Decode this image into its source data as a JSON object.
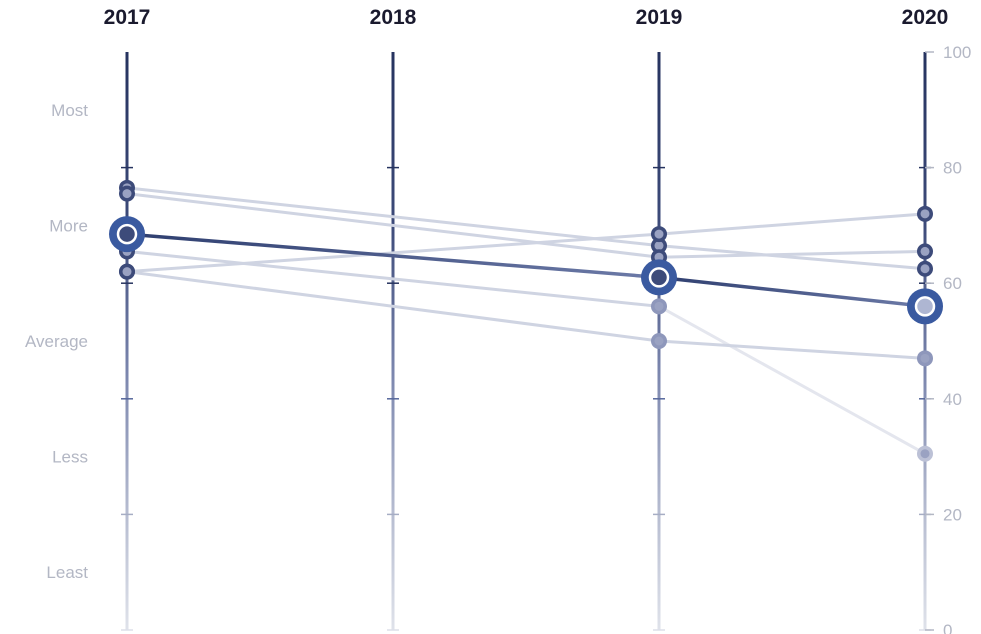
{
  "chart_data": {
    "type": "line",
    "x": [
      "2017",
      "2018",
      "2019",
      "2020"
    ],
    "ylim": [
      0,
      100
    ],
    "yticks": [
      "0",
      "20",
      "40",
      "60",
      "80",
      "100"
    ],
    "bands": [
      "Most",
      "More",
      "Average",
      "Less",
      "Least"
    ],
    "series": [
      {
        "values": [
          76.5,
          null,
          66.5,
          62.5
        ],
        "highlight": false
      },
      {
        "values": [
          75.5,
          null,
          64.5,
          65.5
        ],
        "highlight": false
      },
      {
        "values": [
          68.5,
          null,
          61,
          56
        ],
        "highlight": true
      },
      {
        "values": [
          65.5,
          null,
          56,
          30.5
        ],
        "highlight": false
      },
      {
        "values": [
          62,
          null,
          68.5,
          72
        ],
        "highlight": false
      },
      {
        "values": [
          62,
          null,
          50,
          47
        ],
        "highlight": false
      }
    ],
    "colors": {
      "axis_top": "#26335f",
      "axis_mid": "#56679b",
      "axis_low": "#a6adc4",
      "axis_bottom": "#dcdfe9",
      "line_normal": "#cfd4e2",
      "line_light": "#e4e6ee",
      "line_highlight": "#3a4e85",
      "highlight_fill": "#3a5aa0",
      "dot_dark": "#3d4b7a",
      "dot_mid": "#8e97bb",
      "dot_light": "#bcc1d6",
      "text_muted": "#b3b7c4"
    }
  }
}
